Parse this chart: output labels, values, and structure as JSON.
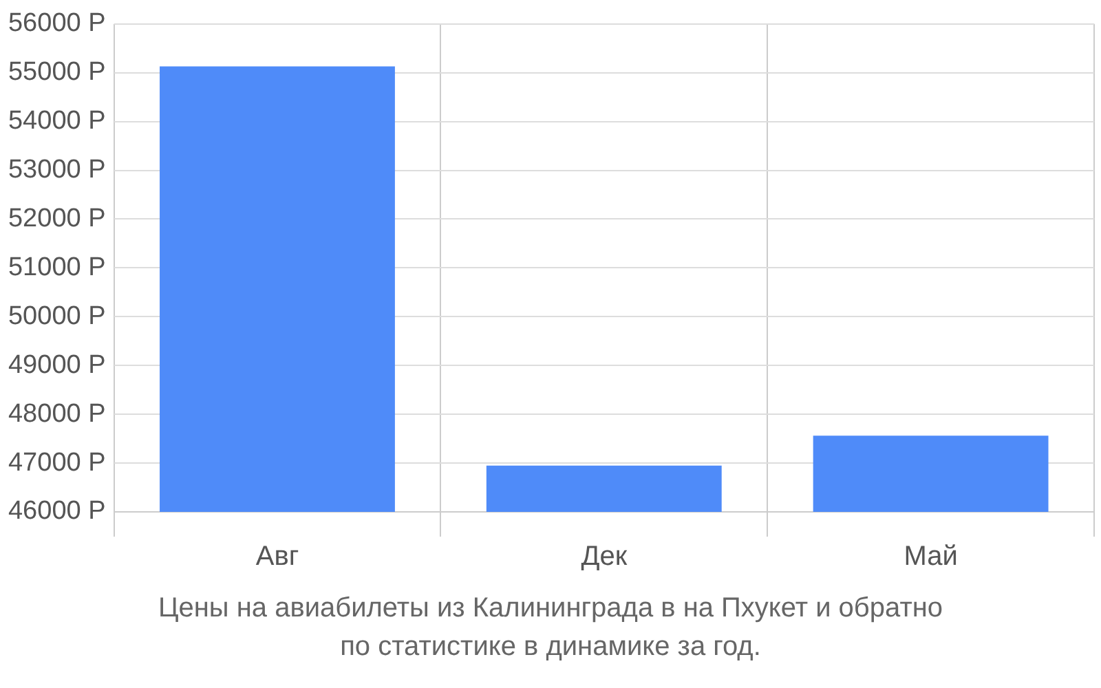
{
  "chart_data": {
    "type": "bar",
    "categories": [
      "Авг",
      "Дек",
      "Май"
    ],
    "values": [
      55130,
      46950,
      47560
    ],
    "color": "#4f8bf9",
    "ylim": [
      46000,
      56000
    ],
    "yticks": [
      {
        "value": 46000,
        "label": "46000 Р"
      },
      {
        "value": 47000,
        "label": "47000 Р"
      },
      {
        "value": 48000,
        "label": "48000 Р"
      },
      {
        "value": 49000,
        "label": "49000 Р"
      },
      {
        "value": 50000,
        "label": "50000 Р"
      },
      {
        "value": 51000,
        "label": "51000 Р"
      },
      {
        "value": 52000,
        "label": "52000 Р"
      },
      {
        "value": 53000,
        "label": "53000 Р"
      },
      {
        "value": 54000,
        "label": "54000 Р"
      },
      {
        "value": 55000,
        "label": "55000 Р"
      },
      {
        "value": 56000,
        "label": "56000 Р"
      }
    ],
    "grid": true,
    "legend": false,
    "annotations": [
      "Цены на авиабилеты из Калининграда в на Пхукет и обратно",
      "по статистике в динамике за год."
    ]
  }
}
